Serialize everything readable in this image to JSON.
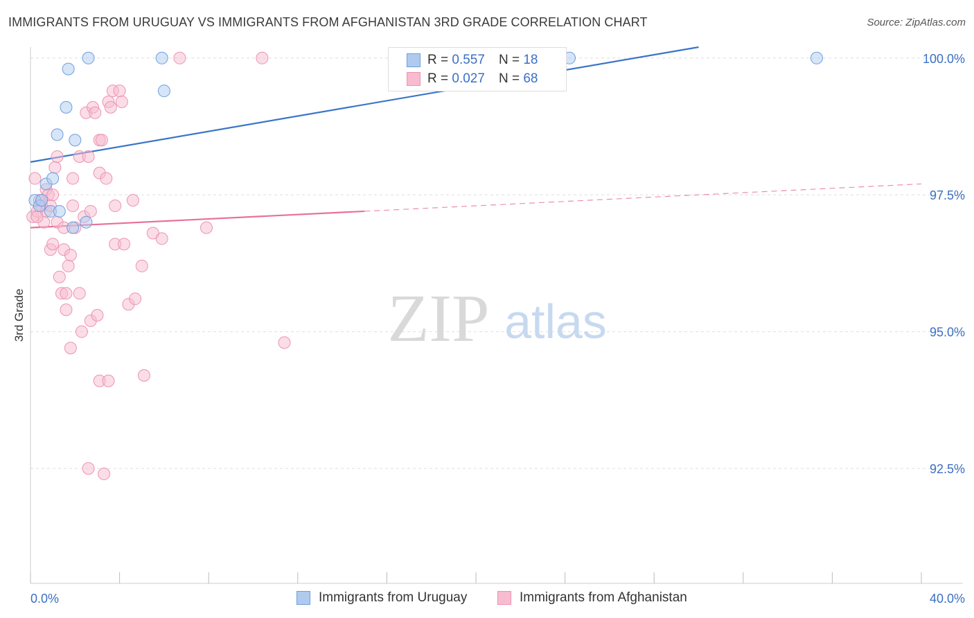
{
  "header": {
    "title": "IMMIGRANTS FROM URUGUAY VS IMMIGRANTS FROM AFGHANISTAN 3RD GRADE CORRELATION CHART",
    "source": "Source: ZipAtlas.com"
  },
  "colors": {
    "uruguay_fill": "#aecbef",
    "uruguay_stroke": "#6d9ee0",
    "uruguay_line": "#3a74c9",
    "afghanistan_fill": "#f7bcd0",
    "afghanistan_stroke": "#ec93b1",
    "afghanistan_line": "#e8709b",
    "axis_label": "#3a6fc4",
    "grid": "#dddddd"
  },
  "legend": {
    "rows": [
      {
        "r_label": "R = ",
        "r_value": "0.557",
        "n_label": "N = ",
        "n_value": "18"
      },
      {
        "r_label": "R = ",
        "r_value": "0.027",
        "n_label": "N = ",
        "n_value": "68"
      }
    ]
  },
  "watermark": {
    "zip": "ZIP",
    "atlas": "atlas"
  },
  "chart_data": {
    "type": "scatter",
    "title": "IMMIGRANTS FROM URUGUAY VS IMMIGRANTS FROM AFGHANISTAN 3RD GRADE CORRELATION CHART",
    "xlabel": "",
    "ylabel": "3rd Grade",
    "xlim": [
      0,
      40
    ],
    "ylim": [
      90.4,
      100.2
    ],
    "x_tick_labels": [
      "0.0%",
      "40.0%"
    ],
    "y_ticks": [
      {
        "value": 100.0,
        "label": "100.0%"
      },
      {
        "value": 97.5,
        "label": "97.5%"
      },
      {
        "value": 95.0,
        "label": "95.0%"
      },
      {
        "value": 92.5,
        "label": "92.5%"
      }
    ],
    "grid": true,
    "series": [
      {
        "name": "Immigrants from Uruguay",
        "r": 0.557,
        "n": 18,
        "trend": {
          "x0": 0.0,
          "y0": 98.1,
          "x1": 40.0,
          "y1": 100.9,
          "dashed_from": null
        },
        "points": [
          {
            "x": 0.2,
            "y": 97.4
          },
          {
            "x": 0.4,
            "y": 97.3
          },
          {
            "x": 0.5,
            "y": 97.4
          },
          {
            "x": 0.7,
            "y": 97.7
          },
          {
            "x": 0.9,
            "y": 97.2
          },
          {
            "x": 1.0,
            "y": 97.8
          },
          {
            "x": 1.2,
            "y": 98.6
          },
          {
            "x": 1.3,
            "y": 97.2
          },
          {
            "x": 1.6,
            "y": 99.1
          },
          {
            "x": 1.7,
            "y": 99.8
          },
          {
            "x": 1.9,
            "y": 96.9
          },
          {
            "x": 2.0,
            "y": 98.5
          },
          {
            "x": 2.5,
            "y": 97.0
          },
          {
            "x": 2.6,
            "y": 100.0
          },
          {
            "x": 5.9,
            "y": 100.0
          },
          {
            "x": 6.0,
            "y": 99.4
          },
          {
            "x": 24.2,
            "y": 100.0
          },
          {
            "x": 35.3,
            "y": 100.0
          }
        ]
      },
      {
        "name": "Immigrants from Afghanistan",
        "r": 0.027,
        "n": 68,
        "trend": {
          "x0": 0.0,
          "y0": 96.9,
          "x1": 40.0,
          "y1": 97.7,
          "dashed_from": 15.0
        },
        "points": [
          {
            "x": 0.1,
            "y": 97.1
          },
          {
            "x": 0.2,
            "y": 97.8
          },
          {
            "x": 0.3,
            "y": 97.2
          },
          {
            "x": 0.4,
            "y": 97.4
          },
          {
            "x": 0.5,
            "y": 97.3
          },
          {
            "x": 0.6,
            "y": 97.0
          },
          {
            "x": 0.7,
            "y": 97.6
          },
          {
            "x": 0.7,
            "y": 97.2
          },
          {
            "x": 0.8,
            "y": 97.5
          },
          {
            "x": 0.9,
            "y": 97.3
          },
          {
            "x": 0.9,
            "y": 96.5
          },
          {
            "x": 1.0,
            "y": 96.6
          },
          {
            "x": 1.1,
            "y": 98.0
          },
          {
            "x": 1.2,
            "y": 98.2
          },
          {
            "x": 1.2,
            "y": 97.0
          },
          {
            "x": 1.3,
            "y": 96.0
          },
          {
            "x": 1.4,
            "y": 95.7
          },
          {
            "x": 1.5,
            "y": 96.5
          },
          {
            "x": 1.5,
            "y": 96.9
          },
          {
            "x": 1.6,
            "y": 95.7
          },
          {
            "x": 1.6,
            "y": 95.4
          },
          {
            "x": 1.7,
            "y": 96.2
          },
          {
            "x": 1.8,
            "y": 96.4
          },
          {
            "x": 1.8,
            "y": 94.7
          },
          {
            "x": 1.9,
            "y": 97.8
          },
          {
            "x": 1.9,
            "y": 97.3
          },
          {
            "x": 2.0,
            "y": 96.9
          },
          {
            "x": 2.2,
            "y": 98.2
          },
          {
            "x": 2.2,
            "y": 95.7
          },
          {
            "x": 2.3,
            "y": 95.0
          },
          {
            "x": 2.4,
            "y": 97.1
          },
          {
            "x": 2.5,
            "y": 99.0
          },
          {
            "x": 2.6,
            "y": 98.2
          },
          {
            "x": 2.6,
            "y": 92.5
          },
          {
            "x": 2.7,
            "y": 95.2
          },
          {
            "x": 2.7,
            "y": 97.2
          },
          {
            "x": 2.8,
            "y": 99.1
          },
          {
            "x": 2.9,
            "y": 99.0
          },
          {
            "x": 3.0,
            "y": 95.3
          },
          {
            "x": 3.1,
            "y": 98.5
          },
          {
            "x": 3.2,
            "y": 98.5
          },
          {
            "x": 3.1,
            "y": 97.9
          },
          {
            "x": 3.1,
            "y": 94.1
          },
          {
            "x": 3.3,
            "y": 92.4
          },
          {
            "x": 3.4,
            "y": 97.8
          },
          {
            "x": 3.5,
            "y": 94.1
          },
          {
            "x": 3.5,
            "y": 99.2
          },
          {
            "x": 3.6,
            "y": 99.1
          },
          {
            "x": 3.7,
            "y": 99.4
          },
          {
            "x": 3.8,
            "y": 96.6
          },
          {
            "x": 3.8,
            "y": 97.3
          },
          {
            "x": 4.0,
            "y": 99.4
          },
          {
            "x": 4.1,
            "y": 99.2
          },
          {
            "x": 4.2,
            "y": 96.6
          },
          {
            "x": 4.4,
            "y": 95.5
          },
          {
            "x": 4.6,
            "y": 97.4
          },
          {
            "x": 4.7,
            "y": 95.6
          },
          {
            "x": 5.0,
            "y": 96.2
          },
          {
            "x": 5.1,
            "y": 94.2
          },
          {
            "x": 5.5,
            "y": 96.8
          },
          {
            "x": 5.9,
            "y": 96.7
          },
          {
            "x": 6.7,
            "y": 100.0
          },
          {
            "x": 7.9,
            "y": 96.9
          },
          {
            "x": 10.4,
            "y": 100.0
          },
          {
            "x": 11.4,
            "y": 94.8
          },
          {
            "x": 0.5,
            "y": 97.4
          },
          {
            "x": 0.3,
            "y": 97.1
          },
          {
            "x": 1.0,
            "y": 97.5
          }
        ]
      }
    ]
  },
  "bottom_legend": {
    "items": [
      {
        "label": "Immigrants from Uruguay"
      },
      {
        "label": "Immigrants from Afghanistan"
      }
    ]
  }
}
